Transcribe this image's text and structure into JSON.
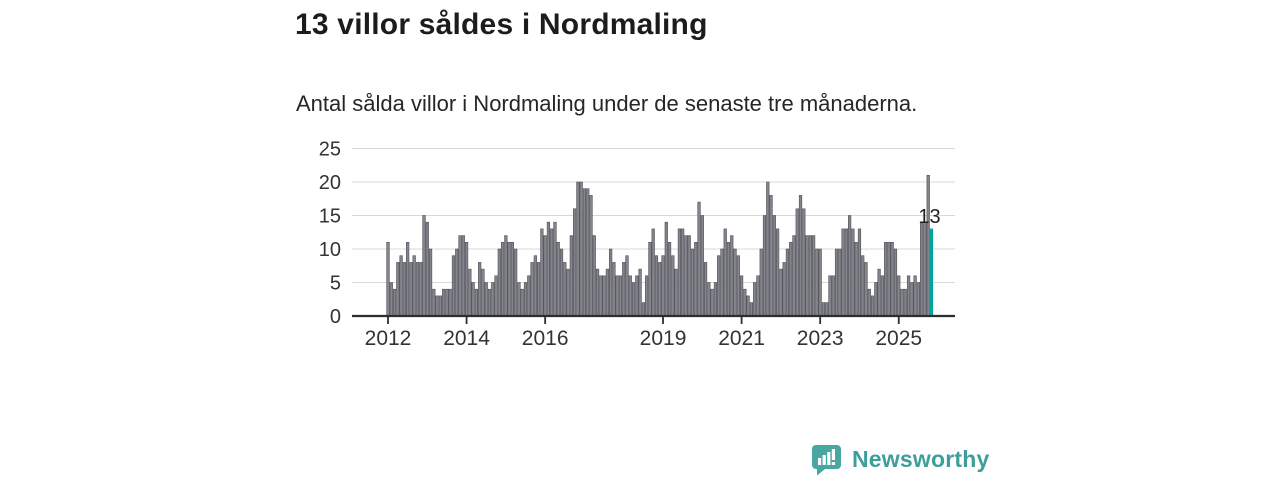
{
  "title": "13 villor såldes i Nordmaling",
  "subtitle": "Antal sålda villor i Nordmaling under de senaste tre månaderna.",
  "chart_data": {
    "type": "bar",
    "title": "13 villor såldes i Nordmaling",
    "subtitle": "Antal sålda villor i Nordmaling under de senaste tre månaderna.",
    "xlabel": "",
    "ylabel": "",
    "ylim": [
      0,
      25
    ],
    "y_ticks": [
      0,
      5,
      10,
      15,
      20,
      25
    ],
    "grid": true,
    "x_tick_labels": [
      "2012",
      "2014",
      "2016",
      "2019",
      "2021",
      "2023",
      "2025"
    ],
    "x_tick_month_index": [
      0,
      24,
      48,
      84,
      108,
      132,
      156
    ],
    "values": [
      11,
      5,
      4,
      8,
      9,
      8,
      11,
      8,
      9,
      8,
      8,
      15,
      14,
      10,
      4,
      3,
      3,
      4,
      4,
      4,
      9,
      10,
      12,
      12,
      11,
      7,
      5,
      4,
      8,
      7,
      5,
      4,
      5,
      6,
      10,
      11,
      12,
      11,
      11,
      10,
      5,
      4,
      5,
      6,
      8,
      9,
      8,
      13,
      12,
      14,
      13,
      14,
      11,
      10,
      8,
      7,
      12,
      16,
      20,
      20,
      19,
      19,
      18,
      12,
      7,
      6,
      6,
      7,
      10,
      8,
      6,
      6,
      8,
      9,
      6,
      5,
      6,
      7,
      2,
      6,
      11,
      13,
      9,
      8,
      9,
      14,
      11,
      9,
      7,
      13,
      13,
      12,
      12,
      10,
      11,
      17,
      15,
      8,
      5,
      4,
      5,
      9,
      10,
      13,
      11,
      12,
      10,
      9,
      6,
      4,
      3,
      2,
      5,
      6,
      10,
      15,
      20,
      18,
      15,
      13,
      7,
      8,
      10,
      11,
      12,
      16,
      18,
      16,
      12,
      12,
      12,
      10,
      10,
      2,
      2,
      6,
      6,
      10,
      10,
      13,
      13,
      15,
      13,
      11,
      13,
      9,
      8,
      4,
      3,
      5,
      7,
      6,
      11,
      11,
      11,
      10,
      6,
      4,
      4,
      6,
      5,
      6,
      5,
      14,
      14,
      21,
      13
    ],
    "highlight_last": true,
    "annotation": {
      "text": "13",
      "value": 13
    },
    "bar_color": "#84848c",
    "bar_stroke": "#4f4f57",
    "highlight_color": "#00a5a0",
    "gridline_color": "#d8d8d8",
    "axis_color": "#2e2e2e",
    "tick_label_color": "#333333"
  },
  "logo": {
    "text": "Newsworthy",
    "color": "#3e9e9a"
  }
}
